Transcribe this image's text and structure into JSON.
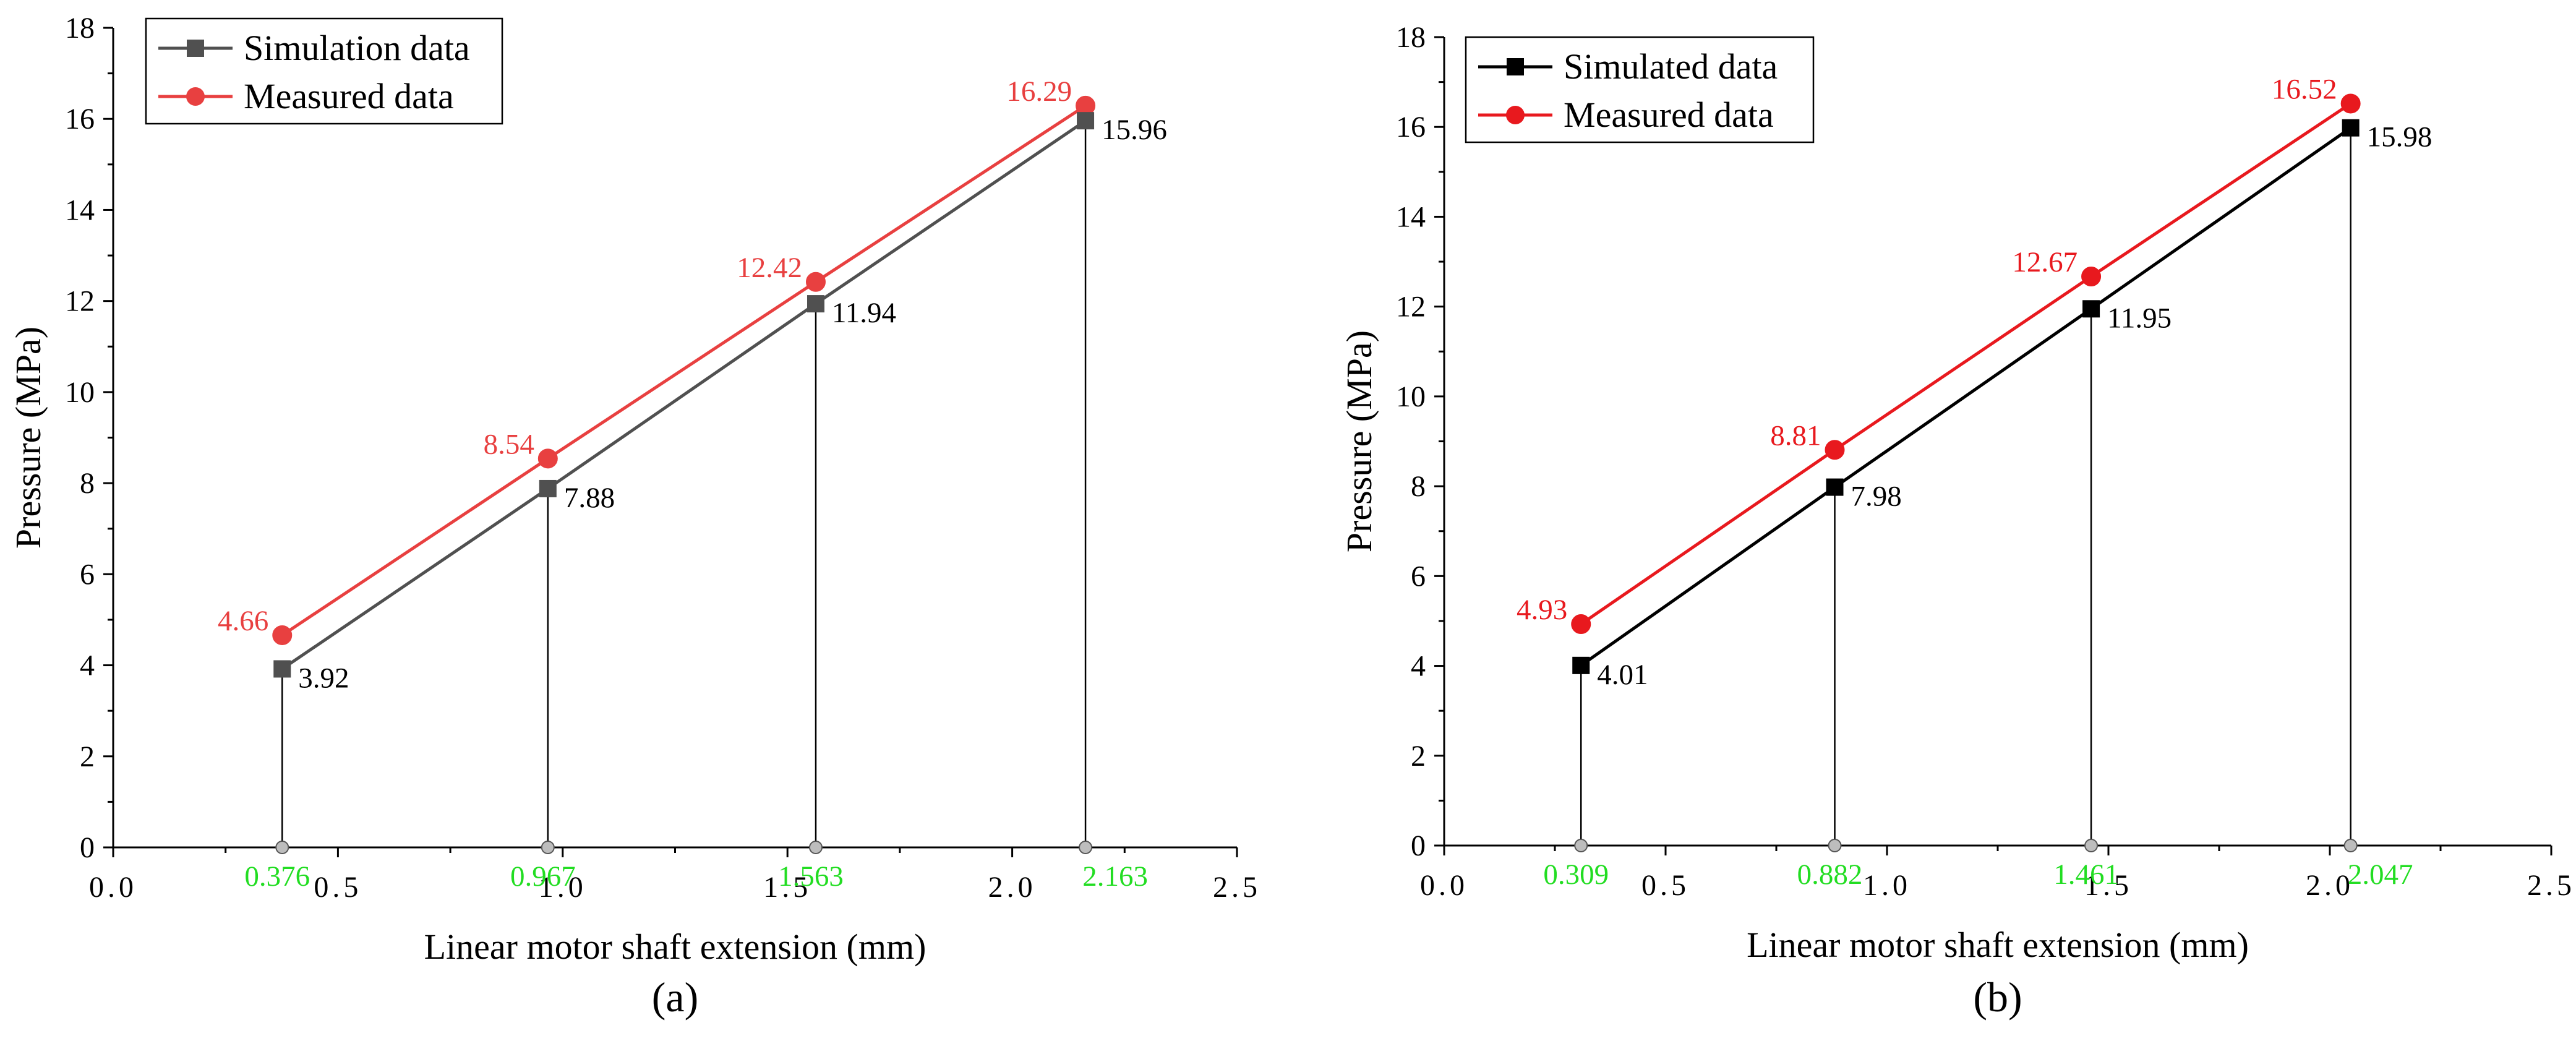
{
  "colors": {
    "sim_a": "#505050",
    "sim_b": "#000000",
    "measured": "#e8191e",
    "measured_a": "#e84040",
    "x_annotation": "#22dd22",
    "guide": "#000000",
    "base_marker_fill": "#bdbdbd"
  },
  "chart_data": [
    {
      "type": "line",
      "panel_label": "(a)",
      "xlabel": "Linear motor shaft extension (mm)",
      "ylabel": "Pressure (MPa)",
      "xlim": [
        0.0,
        2.5
      ],
      "ylim": [
        0,
        18
      ],
      "x_ticks": [
        0.0,
        0.5,
        1.0,
        1.5,
        2.0,
        2.5
      ],
      "x_tick_labels": [
        "0.0",
        "0.5",
        "1.0",
        "1.5",
        "2.0",
        "2.5"
      ],
      "y_ticks": [
        0,
        2,
        4,
        6,
        8,
        10,
        12,
        14,
        16,
        18
      ],
      "y_tick_labels": [
        "0",
        "2",
        "4",
        "6",
        "8",
        "10",
        "12",
        "14",
        "16",
        "18"
      ],
      "legend_position": "top-left",
      "series": [
        {
          "name": "Simulation data",
          "marker": "square",
          "color_key": "sim_a",
          "x": [
            0.376,
            0.967,
            1.563,
            2.163
          ],
          "values": [
            3.92,
            7.88,
            11.94,
            15.96
          ],
          "labels": [
            "3.92",
            "7.88",
            "11.94",
            "15.96"
          ]
        },
        {
          "name": "Measured data",
          "marker": "circle",
          "color_key": "measured_a",
          "x": [
            0.376,
            0.967,
            1.563,
            2.163
          ],
          "values": [
            4.66,
            8.54,
            12.42,
            16.29
          ],
          "labels": [
            "4.66",
            "8.54",
            "12.42",
            "16.29"
          ]
        }
      ],
      "x_annotations": [
        "0.376",
        "0.967",
        "1.563",
        "2.163"
      ]
    },
    {
      "type": "line",
      "panel_label": "(b)",
      "xlabel": "Linear motor shaft extension (mm)",
      "ylabel": "Pressure (MPa)",
      "xlim": [
        0.0,
        2.5
      ],
      "ylim": [
        0,
        18
      ],
      "x_ticks": [
        0.0,
        0.5,
        1.0,
        1.5,
        2.0,
        2.5
      ],
      "x_tick_labels": [
        "0.0",
        "0.5",
        "1.0",
        "1.5",
        "2.0",
        "2.5"
      ],
      "y_ticks": [
        0,
        2,
        4,
        6,
        8,
        10,
        12,
        14,
        16,
        18
      ],
      "y_tick_labels": [
        "0",
        "2",
        "4",
        "6",
        "8",
        "10",
        "12",
        "14",
        "16",
        "18"
      ],
      "legend_position": "top-left",
      "series": [
        {
          "name": "Simulated data",
          "marker": "square",
          "color_key": "sim_b",
          "x": [
            0.309,
            0.882,
            1.461,
            2.047
          ],
          "values": [
            4.01,
            7.98,
            11.95,
            15.98
          ],
          "labels": [
            "4.01",
            "7.98",
            "11.95",
            "15.98"
          ]
        },
        {
          "name": "Measured data",
          "marker": "circle",
          "color_key": "measured",
          "x": [
            0.309,
            0.882,
            1.461,
            2.047
          ],
          "values": [
            4.93,
            8.81,
            12.67,
            16.52
          ],
          "labels": [
            "4.93",
            "8.81",
            "12.67",
            "16.52"
          ]
        }
      ],
      "x_annotations": [
        "0.309",
        "0.882",
        "1.461",
        "2.047"
      ]
    }
  ]
}
